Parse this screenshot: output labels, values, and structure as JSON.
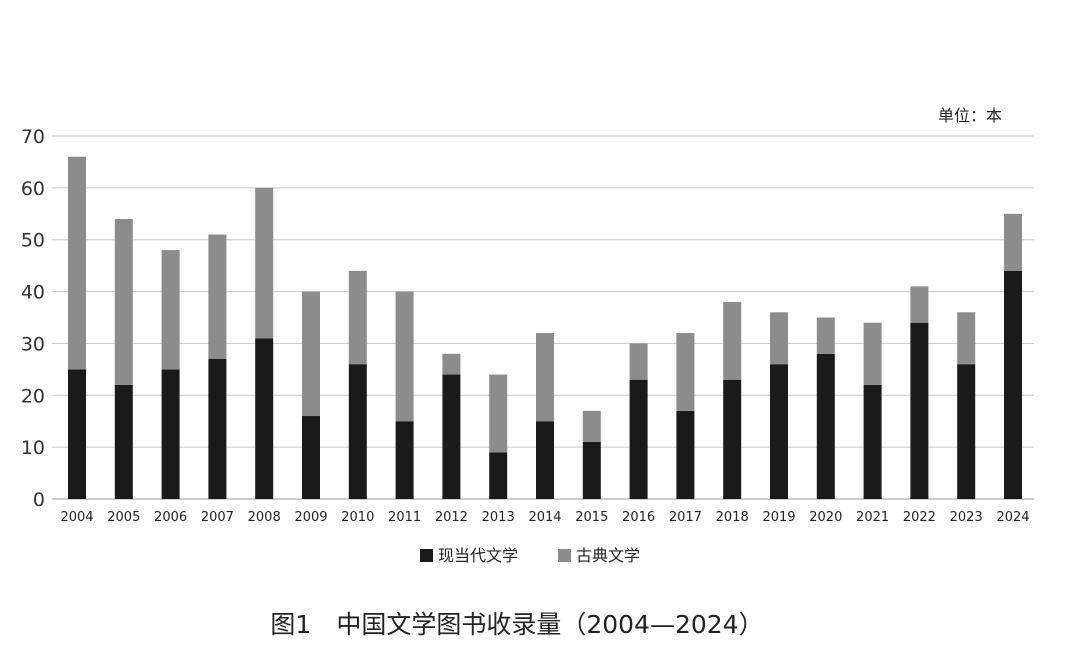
{
  "chart_data": {
    "type": "bar",
    "stacked": true,
    "title": "图1　中国文学图书收录量（2004—2024）",
    "unit": "单位：本",
    "categories": [
      "2004",
      "2005",
      "2006",
      "2007",
      "2008",
      "2009",
      "2010",
      "2011",
      "2012",
      "2013",
      "2014",
      "2015",
      "2016",
      "2017",
      "2018",
      "2019",
      "2020",
      "2021",
      "2022",
      "2023",
      "2024"
    ],
    "series": [
      {
        "name": "现当代文学",
        "color": "#1a1a1a",
        "values": [
          25,
          22,
          25,
          27,
          31,
          16,
          26,
          15,
          24,
          9,
          15,
          11,
          23,
          17,
          23,
          26,
          28,
          22,
          34,
          26,
          44
        ]
      },
      {
        "name": "古典文学",
        "color": "#8c8c8c",
        "values": [
          41,
          32,
          23,
          24,
          29,
          24,
          18,
          25,
          4,
          15,
          17,
          6,
          7,
          15,
          15,
          10,
          7,
          12,
          7,
          10,
          11
        ]
      }
    ],
    "ylim": [
      0,
      70
    ],
    "yticks": [
      0,
      10,
      20,
      30,
      40,
      50,
      60,
      70
    ],
    "grid": true,
    "legend_position": "bottom"
  }
}
